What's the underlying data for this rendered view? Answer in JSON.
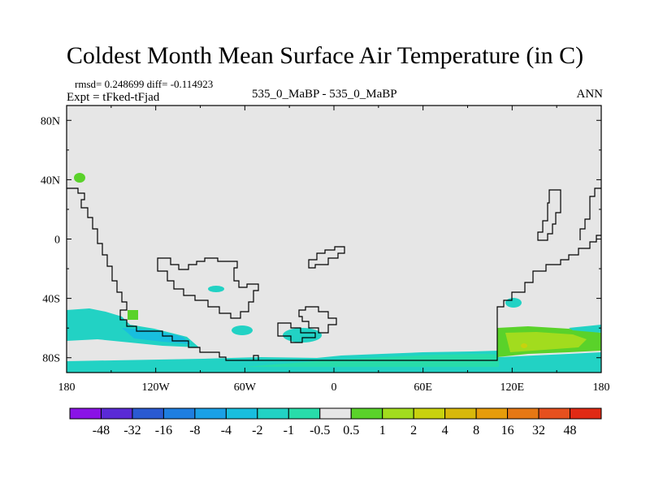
{
  "title": "Coldest Month Mean Surface Air Temperature (in C)",
  "stats_line": "rmsd= 0.248699 diff= -0.114923",
  "experiment_line": "Expt = tFked-tFjad",
  "case_line": "535_0_MaBP - 535_0_MaBP",
  "period": "ANN",
  "colors": {
    "background_field": "#e6e6e6",
    "coast": "#000000"
  },
  "map": {
    "lon_range": [
      -180,
      180
    ],
    "lat_range": [
      -90,
      90
    ],
    "lon_ticks": [
      {
        "value": -180,
        "label": "180"
      },
      {
        "value": -120,
        "label": "120W"
      },
      {
        "value": -60,
        "label": "60W"
      },
      {
        "value": 0,
        "label": "0"
      },
      {
        "value": 60,
        "label": "60E"
      },
      {
        "value": 120,
        "label": "120E"
      },
      {
        "value": 180,
        "label": "180"
      }
    ],
    "lat_ticks": [
      {
        "value": 80,
        "label": "80N"
      },
      {
        "value": 40,
        "label": "40N"
      },
      {
        "value": 0,
        "label": "0"
      },
      {
        "value": -40,
        "label": "40S"
      },
      {
        "value": -80,
        "label": "80S"
      }
    ]
  },
  "colorbar": {
    "labels": [
      "-48",
      "-32",
      "-16",
      "-8",
      "-4",
      "-2",
      "-1",
      "-0.5",
      "0.5",
      "1",
      "2",
      "4",
      "8",
      "16",
      "32",
      "48"
    ],
    "colors": [
      "#8a12e6",
      "#5a2ad6",
      "#2a5ad2",
      "#1e7ee0",
      "#1aa0e6",
      "#18bede",
      "#22d2c4",
      "#28dcaa",
      "#e6e6e6",
      "#5ad22a",
      "#a2dc1e",
      "#c8d20e",
      "#d8b80a",
      "#e69c0a",
      "#e67814",
      "#e6501e",
      "#e02a14"
    ]
  }
}
